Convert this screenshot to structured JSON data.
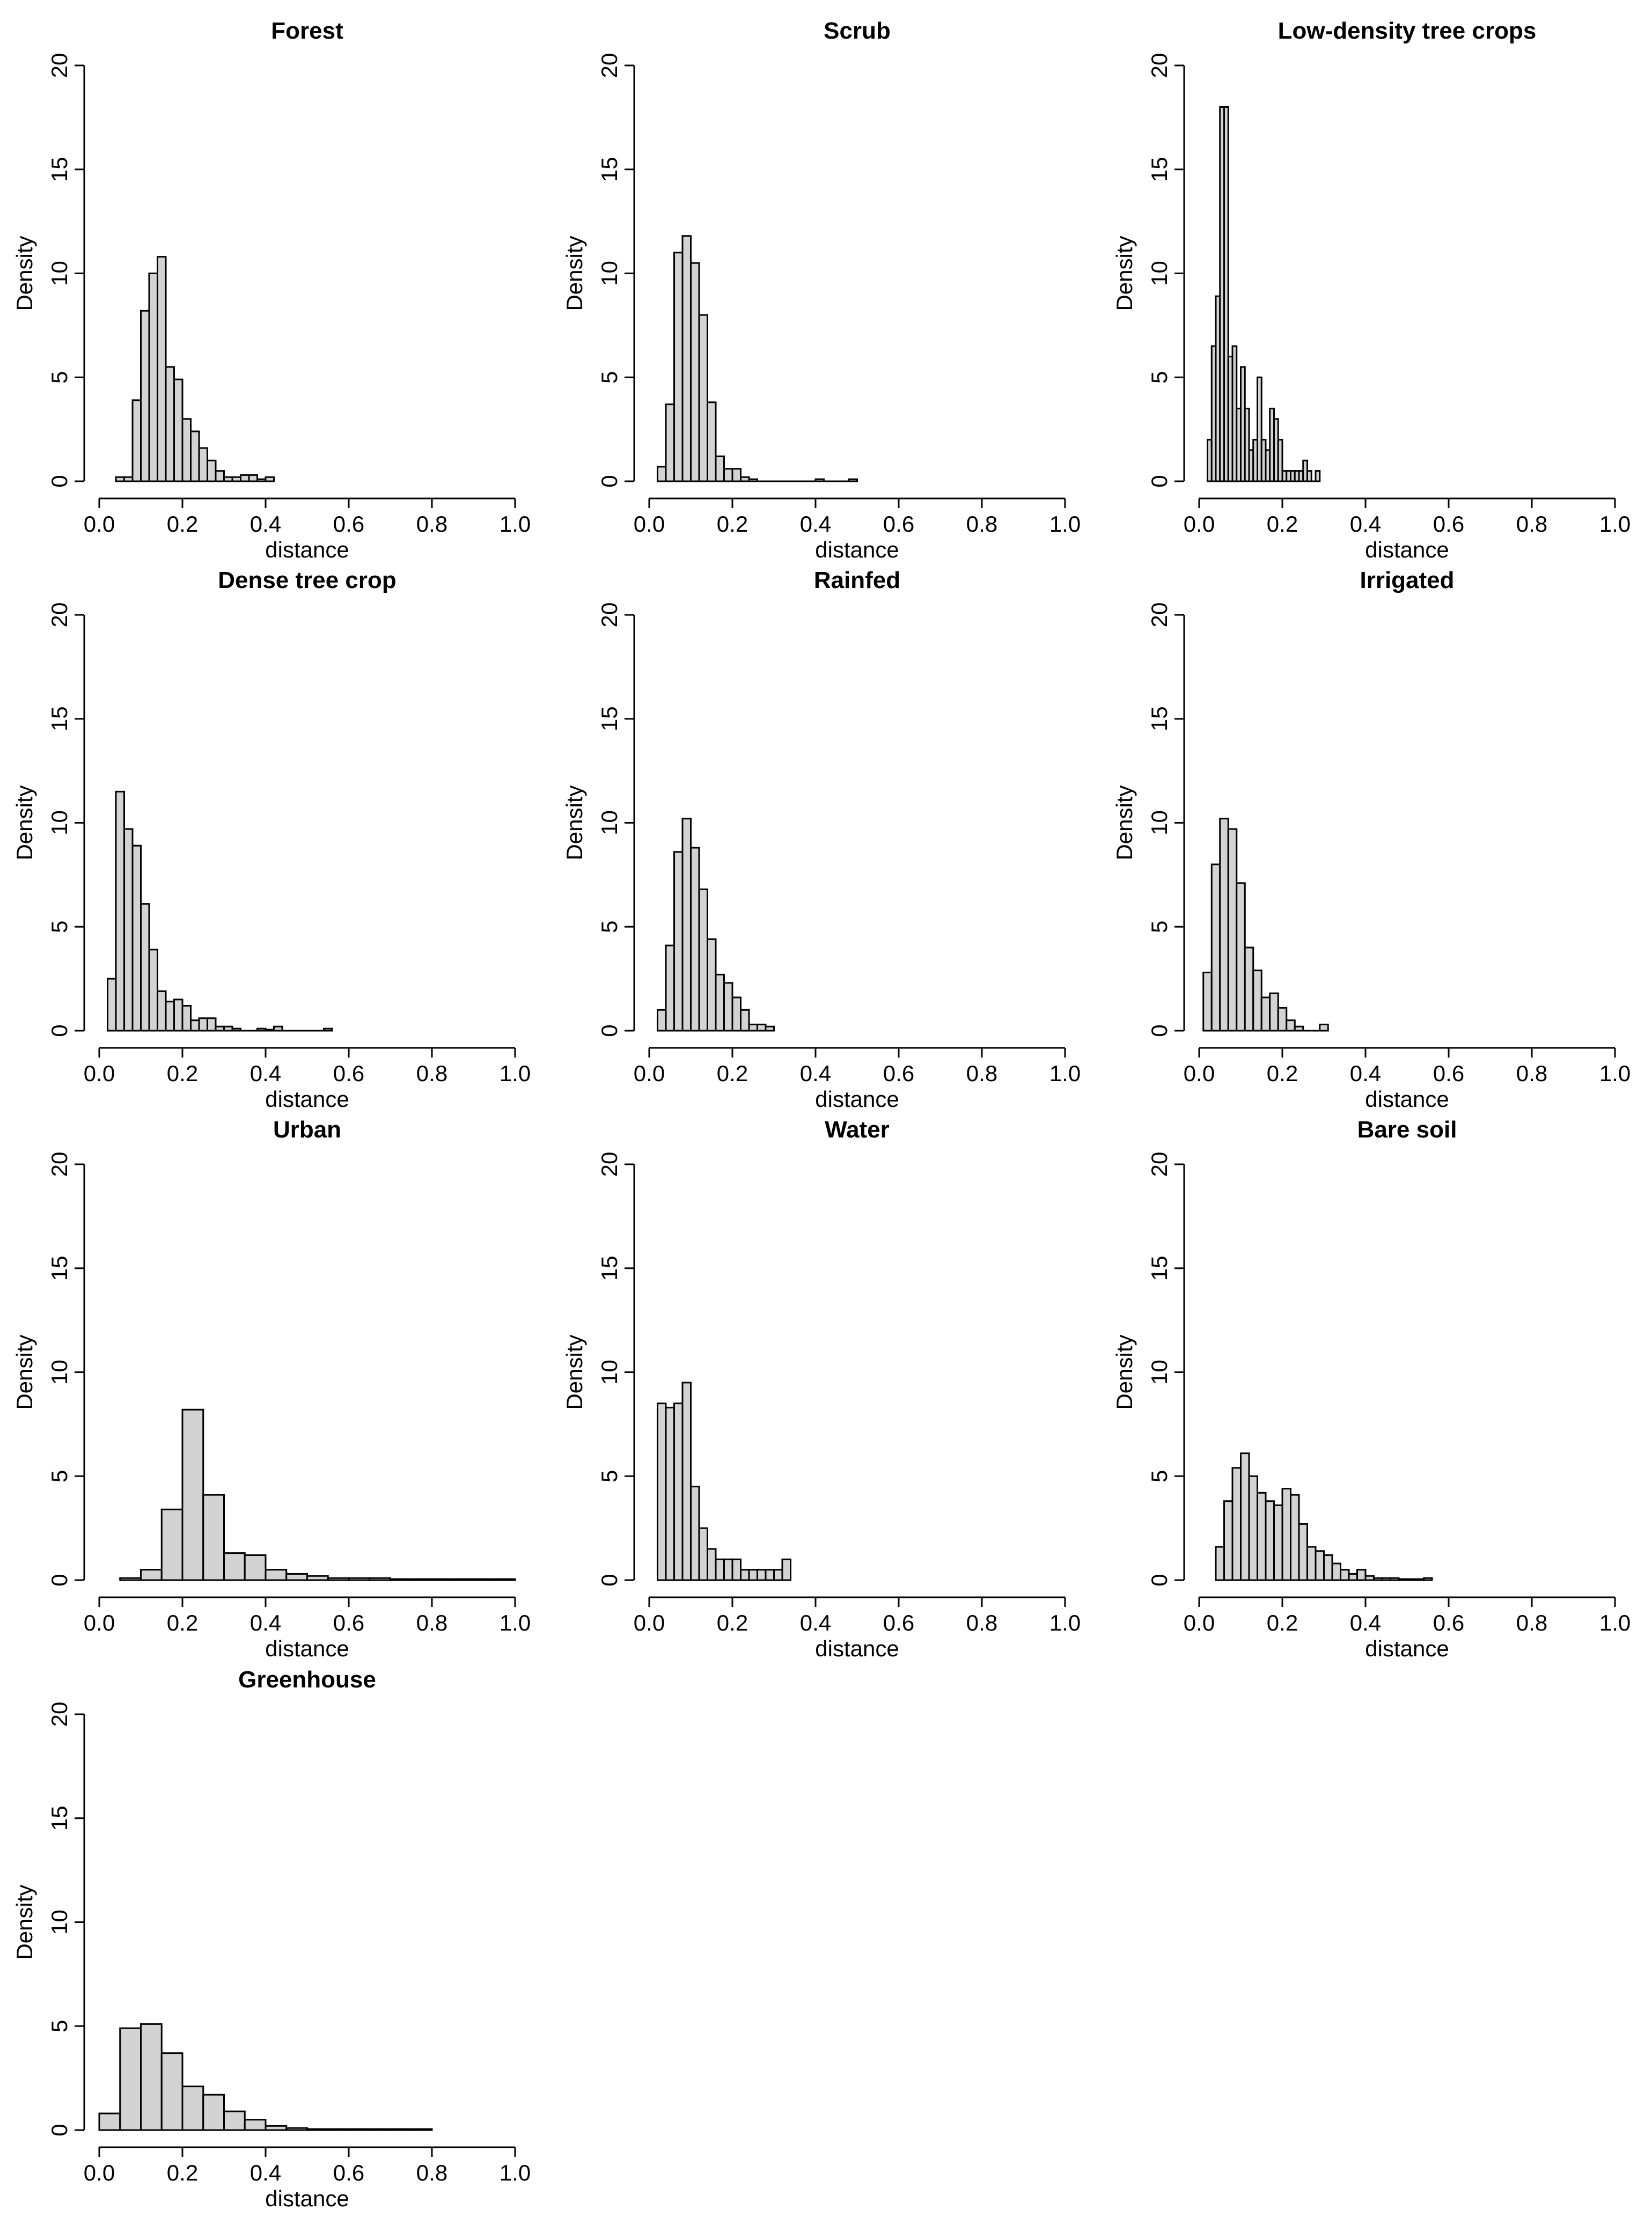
{
  "figure": {
    "bar_fill": "#d3d3d3",
    "bar_stroke": "#000000"
  },
  "chart_data": [
    {
      "type": "bar",
      "title": "Forest",
      "xlabel": "distance",
      "ylabel": "Density",
      "xlim": [
        0,
        1
      ],
      "ylim": [
        0,
        20
      ],
      "xticks": [
        "0.0",
        "0.2",
        "0.4",
        "0.6",
        "0.8",
        "1.0"
      ],
      "yticks": [
        "0",
        "5",
        "10",
        "15",
        "20"
      ],
      "bin_start": 0.04,
      "bin_width": 0.02,
      "values": [
        0.2,
        0.2,
        3.9,
        8.2,
        10.0,
        10.8,
        5.5,
        4.9,
        3.0,
        2.4,
        1.6,
        1.0,
        0.5,
        0.2,
        0.2,
        0.3,
        0.3,
        0.1,
        0.2
      ]
    },
    {
      "type": "bar",
      "title": "Scrub",
      "xlabel": "distance",
      "ylabel": "Density",
      "xlim": [
        0,
        1
      ],
      "ylim": [
        0,
        20
      ],
      "xticks": [
        "0.0",
        "0.2",
        "0.4",
        "0.6",
        "0.8",
        "1.0"
      ],
      "yticks": [
        "0",
        "5",
        "10",
        "15",
        "20"
      ],
      "bin_start": 0.02,
      "bin_width": 0.02,
      "values": [
        0.7,
        3.7,
        11.0,
        11.8,
        10.5,
        8.0,
        3.8,
        1.2,
        0.6,
        0.6,
        0.2,
        0.1,
        0,
        0,
        0,
        0,
        0,
        0,
        0,
        0.1,
        0,
        0,
        0,
        0.1
      ]
    },
    {
      "type": "bar",
      "title": "Low-density tree crops",
      "xlabel": "distance",
      "ylabel": "Density",
      "xlim": [
        0,
        1
      ],
      "ylim": [
        0,
        20
      ],
      "xticks": [
        "0.0",
        "0.2",
        "0.4",
        "0.6",
        "0.8",
        "1.0"
      ],
      "yticks": [
        "0",
        "5",
        "10",
        "15",
        "20"
      ],
      "bin_start": 0.02,
      "bin_width": 0.01,
      "values": [
        2.0,
        6.5,
        8.9,
        18.0,
        18.0,
        6.0,
        6.5,
        3.5,
        5.5,
        3.5,
        1.5,
        2.0,
        5.0,
        2.0,
        1.5,
        3.5,
        3.0,
        2.0,
        0.5,
        0.5,
        0.5,
        0.5,
        0.5,
        1.0,
        0.5,
        0,
        0.5
      ]
    },
    {
      "type": "bar",
      "title": "Dense tree crop",
      "xlabel": "distance",
      "ylabel": "Density",
      "xlim": [
        0,
        1
      ],
      "ylim": [
        0,
        20
      ],
      "xticks": [
        "0.0",
        "0.2",
        "0.4",
        "0.6",
        "0.8",
        "1.0"
      ],
      "yticks": [
        "0",
        "5",
        "10",
        "15",
        "20"
      ],
      "bin_start": 0.02,
      "bin_width": 0.02,
      "values": [
        2.5,
        11.5,
        9.7,
        8.9,
        6.1,
        3.9,
        1.9,
        1.4,
        1.5,
        1.2,
        0.5,
        0.6,
        0.6,
        0.2,
        0.2,
        0.1,
        0,
        0,
        0.1,
        0.05,
        0.2,
        0,
        0,
        0,
        0,
        0,
        0.1
      ]
    },
    {
      "type": "bar",
      "title": "Rainfed",
      "xlabel": "distance",
      "ylabel": "Density",
      "xlim": [
        0,
        1
      ],
      "ylim": [
        0,
        20
      ],
      "xticks": [
        "0.0",
        "0.2",
        "0.4",
        "0.6",
        "0.8",
        "1.0"
      ],
      "yticks": [
        "0",
        "5",
        "10",
        "15",
        "20"
      ],
      "bin_start": 0.02,
      "bin_width": 0.02,
      "values": [
        1.0,
        4.1,
        8.6,
        10.2,
        8.8,
        6.8,
        4.4,
        2.7,
        2.3,
        1.6,
        1.0,
        0.3,
        0.3,
        0.2
      ]
    },
    {
      "type": "bar",
      "title": "Irrigated",
      "xlabel": "distance",
      "ylabel": "Density",
      "xlim": [
        0,
        1
      ],
      "ylim": [
        0,
        20
      ],
      "xticks": [
        "0.0",
        "0.2",
        "0.4",
        "0.6",
        "0.8",
        "1.0"
      ],
      "yticks": [
        "0",
        "5",
        "10",
        "15",
        "20"
      ],
      "bin_start": 0.01,
      "bin_width": 0.02,
      "values": [
        2.8,
        8.0,
        10.2,
        9.7,
        7.1,
        4.0,
        2.9,
        1.6,
        1.8,
        1.1,
        0.5,
        0.2,
        0,
        0,
        0.3
      ]
    },
    {
      "type": "bar",
      "title": "Urban",
      "xlabel": "distance",
      "ylabel": "Density",
      "xlim": [
        0,
        1
      ],
      "ylim": [
        0,
        20
      ],
      "xticks": [
        "0.0",
        "0.2",
        "0.4",
        "0.6",
        "0.8",
        "1.0"
      ],
      "yticks": [
        "0",
        "5",
        "10",
        "15",
        "20"
      ],
      "bin_start": 0.05,
      "bin_width": 0.05,
      "values": [
        0.1,
        0.5,
        3.4,
        8.2,
        4.1,
        1.3,
        1.2,
        0.5,
        0.3,
        0.2,
        0.1,
        0.1,
        0.1,
        0.05,
        0.05,
        0.05,
        0.05,
        0.05,
        0.05
      ]
    },
    {
      "type": "bar",
      "title": "Water",
      "xlabel": "distance",
      "ylabel": "Density",
      "xlim": [
        0,
        1
      ],
      "ylim": [
        0,
        20
      ],
      "xticks": [
        "0.0",
        "0.2",
        "0.4",
        "0.6",
        "0.8",
        "1.0"
      ],
      "yticks": [
        "0",
        "5",
        "10",
        "15",
        "20"
      ],
      "bin_start": 0.02,
      "bin_width": 0.02,
      "values": [
        8.5,
        8.3,
        8.5,
        9.5,
        4.5,
        2.5,
        1.5,
        1.0,
        1.0,
        1.0,
        0.5,
        0.5,
        0.5,
        0.5,
        0.5,
        1.0
      ]
    },
    {
      "type": "bar",
      "title": "Bare soil",
      "xlabel": "distance",
      "ylabel": "Density",
      "xlim": [
        0,
        1
      ],
      "ylim": [
        0,
        20
      ],
      "xticks": [
        "0.0",
        "0.2",
        "0.4",
        "0.6",
        "0.8",
        "1.0"
      ],
      "yticks": [
        "0",
        "5",
        "10",
        "15",
        "20"
      ],
      "bin_start": 0.04,
      "bin_width": 0.02,
      "values": [
        1.6,
        3.8,
        5.4,
        6.1,
        5.0,
        4.2,
        3.8,
        3.6,
        4.4,
        4.1,
        2.7,
        1.6,
        1.4,
        1.2,
        0.8,
        0.5,
        0.3,
        0.5,
        0.2,
        0.1,
        0.1,
        0.1,
        0.05,
        0.05,
        0.05,
        0.1
      ]
    },
    {
      "type": "bar",
      "title": "Greenhouse",
      "xlabel": "distance",
      "ylabel": "Density",
      "xlim": [
        0,
        1
      ],
      "ylim": [
        0,
        20
      ],
      "xticks": [
        "0.0",
        "0.2",
        "0.4",
        "0.6",
        "0.8",
        "1.0"
      ],
      "yticks": [
        "0",
        "5",
        "10",
        "15",
        "20"
      ],
      "bin_start": 0,
      "bin_width": 0.05,
      "values": [
        0.8,
        4.9,
        5.1,
        3.7,
        2.1,
        1.7,
        0.9,
        0.5,
        0.2,
        0.1,
        0.05,
        0.05,
        0.05,
        0.05,
        0.05,
        0.05
      ]
    }
  ]
}
